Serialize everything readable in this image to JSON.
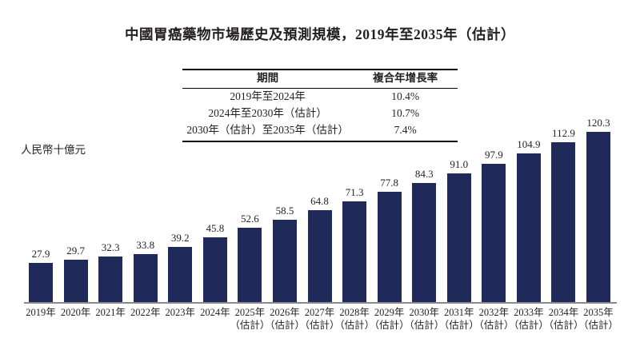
{
  "title": "中國胃癌藥物市場歷史及預測規模，2019年至2035年（估計）",
  "cagr_table": {
    "col_period": "期間",
    "col_cagr": "複合年增長率",
    "rows": [
      {
        "period": "2019年至2024年",
        "cagr": "10.4%"
      },
      {
        "period": "2024年至2030年（估計）",
        "cagr": "10.7%"
      },
      {
        "period": "2030年（估計）至2035年（估計）",
        "cagr": "7.4%"
      }
    ]
  },
  "chart_data": {
    "type": "bar",
    "title": "中國胃癌藥物市場歷史及預測規模，2019年至2035年（估計）",
    "ylabel": "人民幣十億元",
    "xlabel": "",
    "categories": [
      "2019年",
      "2020年",
      "2021年",
      "2022年",
      "2023年",
      "2024年",
      "2025年",
      "2026年",
      "2027年",
      "2028年",
      "2029年",
      "2030年",
      "2031年",
      "2032年",
      "2033年",
      "2034年",
      "2035年"
    ],
    "estimate_suffix": "（估計）",
    "estimate_flags": [
      false,
      false,
      false,
      false,
      false,
      false,
      true,
      true,
      true,
      true,
      true,
      true,
      true,
      true,
      true,
      true,
      true
    ],
    "values": [
      27.9,
      29.7,
      32.3,
      33.8,
      39.2,
      45.8,
      52.6,
      58.5,
      64.8,
      71.3,
      77.8,
      84.3,
      91.0,
      97.9,
      104.9,
      112.9,
      120.3
    ],
    "value_labels": [
      "27.9",
      "29.7",
      "32.3",
      "33.8",
      "39.2",
      "45.8",
      "52.6",
      "58.5",
      "64.8",
      "71.3",
      "77.8",
      "84.3",
      "91.0",
      "97.9",
      "104.9",
      "112.9",
      "120.3"
    ],
    "ylim": [
      0,
      130
    ],
    "grid": false,
    "legend": "none"
  },
  "colors": {
    "bar": "#1f2a5b",
    "axis_line": "#8a8a8d",
    "text": "#231f20",
    "table_border": "#000000"
  }
}
